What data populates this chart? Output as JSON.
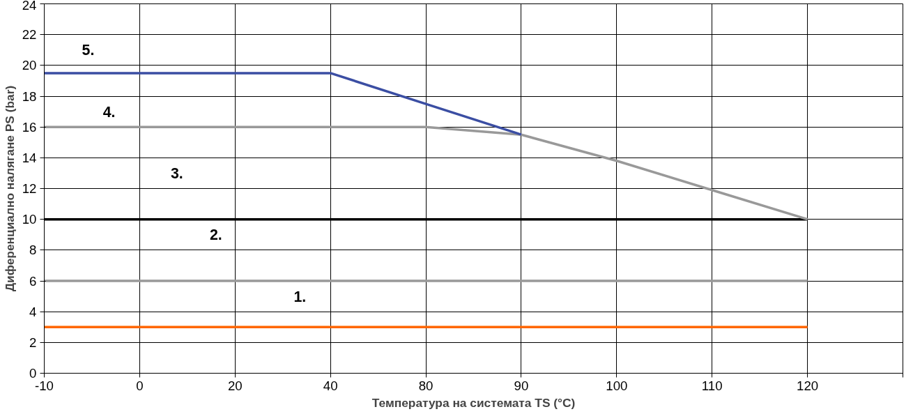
{
  "chart_data": {
    "type": "line",
    "xlabel": "Температура на системата TS (°C)",
    "ylabel": "Диференциално налягане PS (bar)",
    "categories": [
      "-10",
      "0",
      "20",
      "40",
      "80",
      "90",
      "100",
      "110",
      "120",
      null
    ],
    "ylim": [
      0,
      24
    ],
    "yticks": [
      0,
      2,
      4,
      6,
      8,
      10,
      12,
      14,
      16,
      18,
      20,
      22,
      24
    ],
    "grid": true,
    "marker": "none",
    "line_style": "solid",
    "series": [
      {
        "color": "#ff6600",
        "values": [
          3,
          3,
          3,
          3,
          3,
          3,
          3,
          3,
          3,
          null
        ]
      },
      {
        "color": "#999999",
        "values": [
          6,
          6,
          6,
          6,
          6,
          6,
          6,
          6,
          6,
          null
        ]
      },
      {
        "color": "#000000",
        "values": [
          10,
          10,
          10,
          10,
          10,
          10,
          10,
          10,
          10,
          null
        ]
      },
      {
        "color": "#999999",
        "values": [
          16,
          16,
          16,
          16,
          16,
          15.5,
          13.8,
          11.9,
          10,
          null
        ]
      },
      {
        "color": "#3b4ea3",
        "values": [
          19.5,
          19.5,
          19.5,
          19.5,
          17.5,
          15.5,
          null,
          null,
          null,
          null
        ]
      }
    ],
    "annotations": [
      "1.",
      "2.",
      "3.",
      "4.",
      "5."
    ]
  }
}
